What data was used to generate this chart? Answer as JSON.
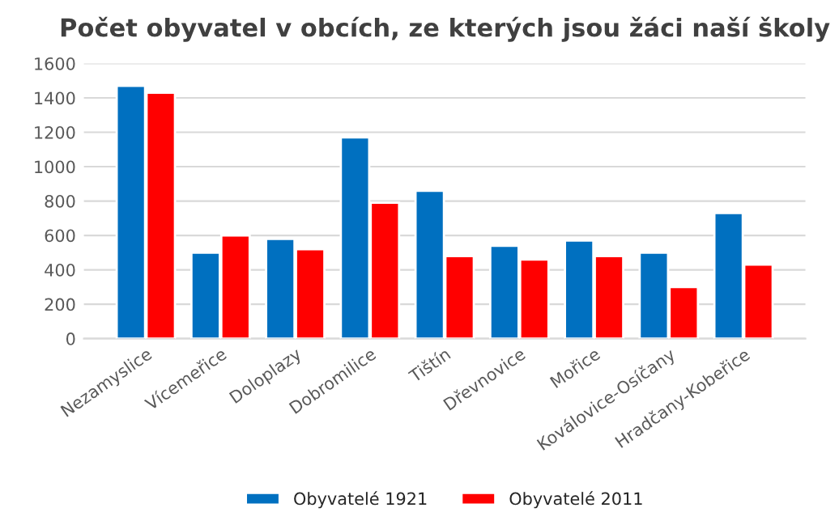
{
  "chart_data": {
    "type": "bar",
    "title": "Počet obyvatel v obcích, ze kterých jsou žáci naší školy",
    "categories": [
      "Nezamyslice",
      "Vícemeřice",
      "Doloplazy",
      "Dobromilice",
      "Tištín",
      "Dřevnovice",
      "Mořice",
      "Koválovice-Osíčany",
      "Hradčany-Kobeřice"
    ],
    "series": [
      {
        "name": "Obyvatelé 1921",
        "color": "#0070c0",
        "values": [
          1470,
          500,
          580,
          1170,
          860,
          540,
          570,
          500,
          730
        ]
      },
      {
        "name": "Obyvatelé 2011",
        "color": "#ff0000",
        "values": [
          1430,
          600,
          520,
          790,
          480,
          460,
          480,
          300,
          430
        ]
      }
    ],
    "ylim": [
      0,
      1600
    ],
    "yticks": [
      0,
      200,
      400,
      600,
      800,
      1000,
      1200,
      1400,
      1600
    ],
    "grid": "y",
    "legend": "bottom"
  }
}
